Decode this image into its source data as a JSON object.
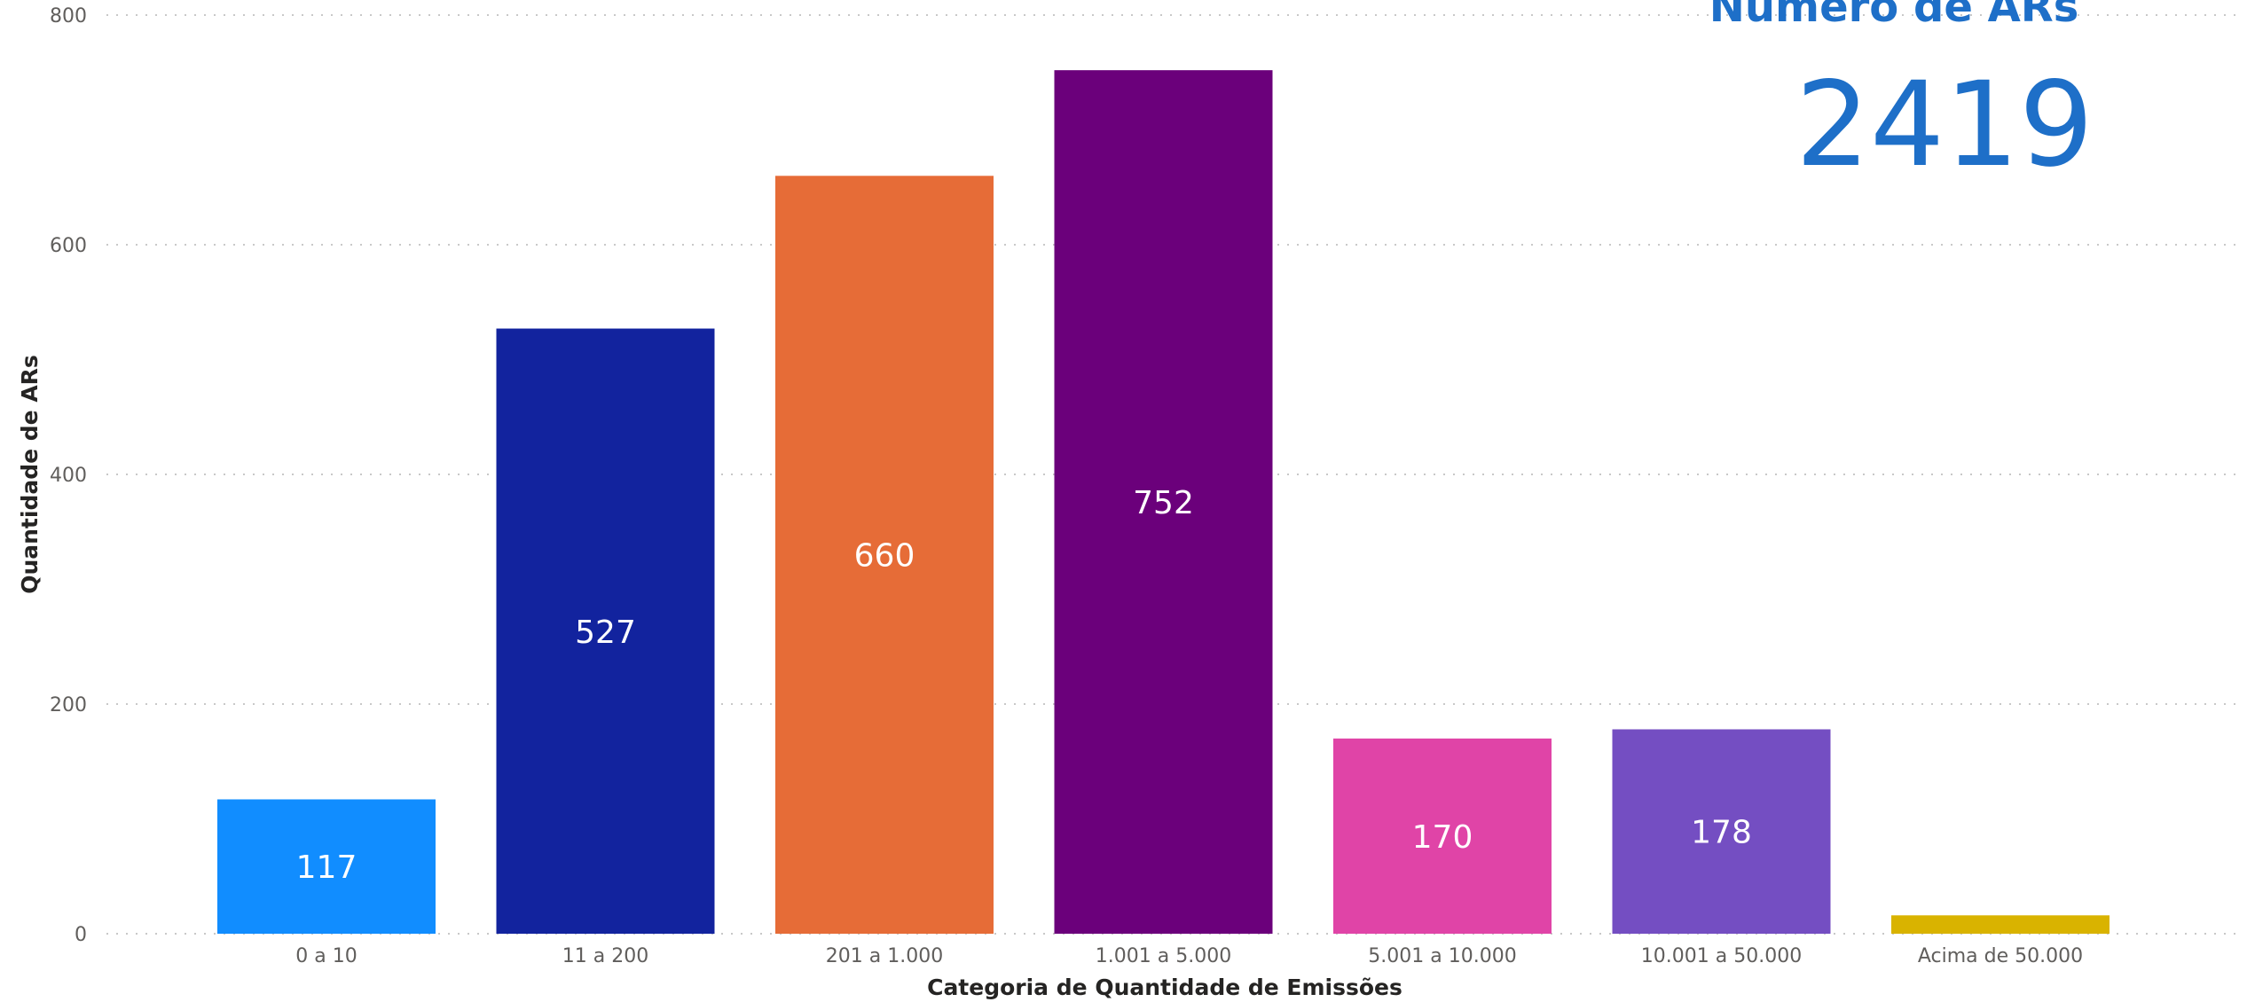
{
  "chart_data": {
    "type": "bar",
    "categories": [
      "0 a 10",
      "11 a 200",
      "201 a 1.000",
      "1.001 a 5.000",
      "5.001 a 10.000",
      "10.001 a 50.000",
      "Acima de 50.000"
    ],
    "values": [
      117,
      527,
      660,
      752,
      170,
      178,
      16
    ],
    "data_labels": [
      "117",
      "527",
      "660",
      "752",
      "170",
      "178",
      ""
    ],
    "colors": [
      "#118dff",
      "#12239e",
      "#e66c37",
      "#6b007b",
      "#e044a7",
      "#744ec2",
      "#d9b300"
    ],
    "xlabel": "Categoria de Quantidade de Emissões",
    "ylabel": "Quantidade de ARs",
    "ylim": [
      0,
      800
    ],
    "yticks": [
      0,
      200,
      400,
      600,
      800
    ],
    "ytick_labels": [
      "0",
      "200",
      "400",
      "600",
      "800"
    ],
    "grid": true,
    "legend": "none"
  },
  "kpi": {
    "title": "Número de ARs",
    "value": "2419",
    "color": "#1e6fc8"
  }
}
